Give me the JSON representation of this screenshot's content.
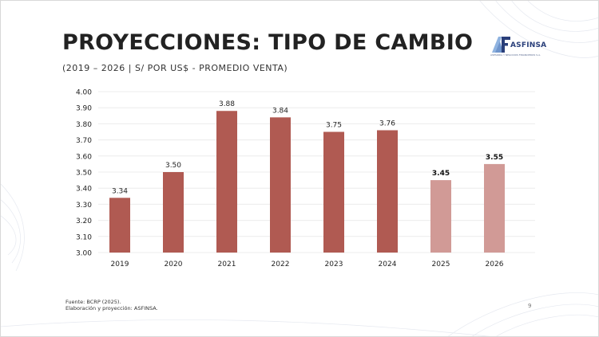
{
  "slide": {
    "title": "PROYECCIONES: TIPO DE CAMBIO",
    "subtitle": "(2019 – 2026 | S/ POR US$ - PROMEDIO VENTA)",
    "logo": {
      "icon": "asfinsa-logo-icon",
      "name": "ASFINSA",
      "tagline": "ASESORÍA Y NEGOCIOS FINANCIEROS S.A."
    },
    "footer": {
      "source": "Fuente: BCRP (2025).",
      "elaboration": "Elaboración y proyección: ASFINSA."
    },
    "page_number": "9"
  },
  "colors": {
    "historical_bar": "#b05a52",
    "projected_bar": "#d19a96",
    "gridline": "#ececec",
    "text": "#222222"
  },
  "chart_data": {
    "type": "bar",
    "title": "",
    "xlabel": "",
    "ylabel": "",
    "categories": [
      "2019",
      "2020",
      "2021",
      "2022",
      "2023",
      "2024",
      "2025",
      "2026"
    ],
    "values": [
      3.34,
      3.5,
      3.88,
      3.84,
      3.75,
      3.76,
      3.45,
      3.55
    ],
    "data_labels": [
      "3.34",
      "3.50",
      "3.88",
      "3.84",
      "3.75",
      "3.76",
      "3.45",
      "3.55"
    ],
    "projected": [
      false,
      false,
      false,
      false,
      false,
      false,
      true,
      true
    ],
    "ylim": [
      3.0,
      4.0
    ],
    "yticks": [
      "3.00",
      "3.10",
      "3.20",
      "3.30",
      "3.40",
      "3.50",
      "3.60",
      "3.70",
      "3.80",
      "3.90",
      "4.00"
    ],
    "ytick_values": [
      3.0,
      3.1,
      3.2,
      3.3,
      3.4,
      3.5,
      3.6,
      3.7,
      3.8,
      3.9,
      4.0
    ],
    "grid": true,
    "legend": "none"
  }
}
